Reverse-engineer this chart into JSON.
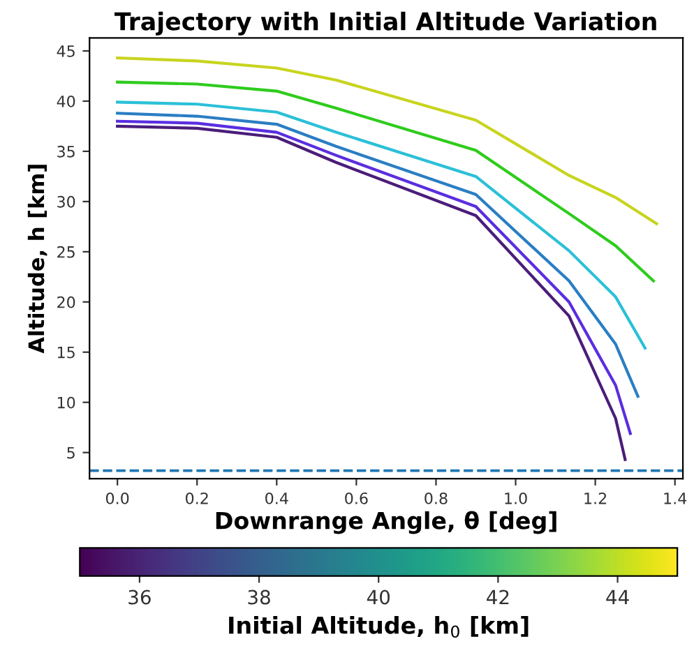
{
  "chart_data": {
    "type": "line",
    "title": "Trajectory with Initial Altitude Variation",
    "xlabel": "Downrange Angle, θ [deg]",
    "ylabel": "Altitude, h [km]",
    "clabel": "Initial Altitude, h$_{0}$ [km]",
    "xlim": [
      -0.07,
      1.42
    ],
    "xticks": [
      {
        "value": 0,
        "label": "0.0"
      },
      0.2,
      0.4,
      0.6,
      0.8,
      {
        "value": 1,
        "label": "1.0"
      },
      1.2,
      1.4
    ],
    "ylim": [
      2.4,
      46.3
    ],
    "yticks": [
      5,
      10,
      15,
      20,
      25,
      30,
      35,
      40,
      45
    ],
    "clim": [
      35,
      45
    ],
    "cticks": [
      36,
      38,
      40,
      42,
      44
    ],
    "series": [
      {
        "color": "#4b1d7a",
        "x": [
          0,
          0.2,
          0.4,
          0.549,
          0.9,
          1.134,
          1.251,
          1.275
        ],
        "values": [
          37.5,
          37.3,
          36.4,
          33.9,
          28.6,
          18.6,
          8.4,
          4.3
        ]
      },
      {
        "color": "#5a2ee0",
        "x": [
          0,
          0.2,
          0.4,
          0.549,
          0.9,
          1.134,
          1.251,
          1.288
        ],
        "values": [
          38.0,
          37.8,
          36.9,
          34.6,
          29.5,
          20.0,
          11.7,
          6.9
        ]
      },
      {
        "color": "#2a7ec4",
        "x": [
          0,
          0.2,
          0.4,
          0.549,
          0.9,
          1.134,
          1.251,
          1.307
        ],
        "values": [
          38.8,
          38.5,
          37.7,
          35.5,
          30.7,
          22.1,
          15.8,
          10.6
        ]
      },
      {
        "color": "#2bc0d8",
        "x": [
          0,
          0.2,
          0.4,
          0.549,
          0.9,
          1.134,
          1.251,
          1.325
        ],
        "values": [
          39.9,
          39.7,
          38.9,
          36.9,
          32.5,
          25.1,
          20.5,
          15.4
        ]
      },
      {
        "color": "#2ecc1c",
        "x": [
          0,
          0.2,
          0.4,
          0.549,
          0.9,
          1.134,
          1.251,
          1.346
        ],
        "values": [
          41.9,
          41.7,
          41.0,
          39.3,
          35.1,
          28.8,
          25.6,
          22.1
        ]
      },
      {
        "color": "#c8d41e",
        "x": [
          0,
          0.2,
          0.4,
          0.549,
          0.9,
          1.134,
          1.251,
          1.354
        ],
        "values": [
          44.3,
          44.0,
          43.3,
          42.1,
          38.1,
          32.6,
          30.4,
          27.8
        ]
      }
    ],
    "ref_lines": [
      {
        "axis": "y",
        "value": 3.2,
        "color": "#1f77b4",
        "line_style": "dashed"
      }
    ],
    "grid": false,
    "legend": false
  }
}
